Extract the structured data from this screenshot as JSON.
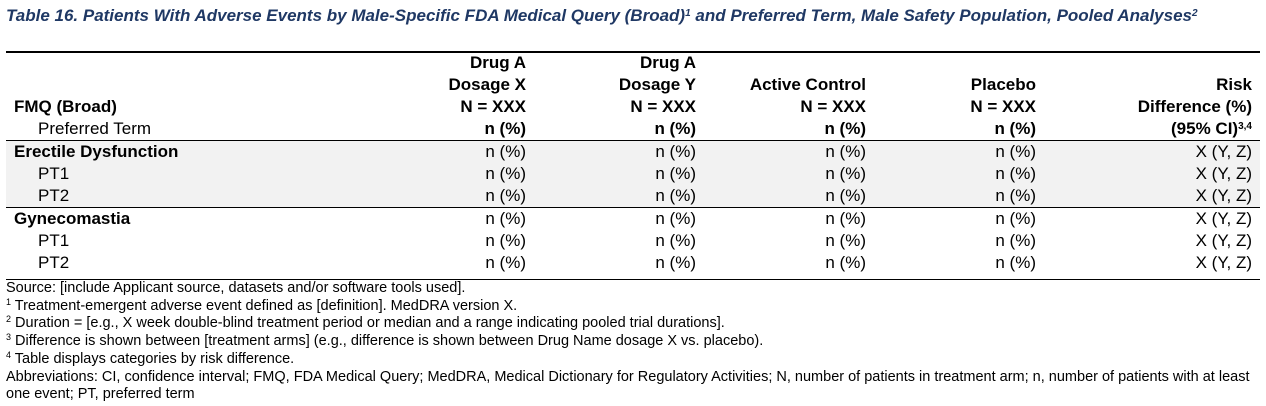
{
  "title": {
    "text": "Table 16. Patients With Adverse Events by Male-Specific FDA Medical Query (Broad)",
    "sup": "1",
    "text2": " and Preferred Term, Male Safety Population, Pooled Analyses",
    "sup2": "2"
  },
  "header": {
    "fmq_label": "FMQ (Broad)",
    "pt_label": "Preferred Term",
    "col1": [
      "Drug A",
      "Dosage X",
      "N = XXX",
      "n (%)"
    ],
    "col2": [
      "Drug A",
      "Dosage Y",
      "N = XXX",
      "n (%)"
    ],
    "col3": [
      "Active Control",
      "N = XXX",
      "n (%)"
    ],
    "col4": [
      "Placebo",
      "N = XXX",
      "n (%)"
    ],
    "col5": [
      "Risk",
      "Difference (%)",
      "(95% CI)",
      "3,4"
    ]
  },
  "rows": [
    {
      "label": "Erectile Dysfunction",
      "c1": "n (%)",
      "c2": "n (%)",
      "c3": "n (%)",
      "c4": "n (%)",
      "c5": "X (Y, Z)"
    },
    {
      "label": "PT1",
      "c1": "n (%)",
      "c2": "n (%)",
      "c3": "n (%)",
      "c4": "n (%)",
      "c5": "X (Y, Z)"
    },
    {
      "label": "PT2",
      "c1": "n (%)",
      "c2": "n (%)",
      "c3": "n (%)",
      "c4": "n (%)",
      "c5": "X (Y, Z)"
    },
    {
      "label": "Gynecomastia",
      "c1": "n (%)",
      "c2": "n (%)",
      "c3": "n (%)",
      "c4": "n (%)",
      "c5": "X (Y, Z)"
    },
    {
      "label": "PT1",
      "c1": "n (%)",
      "c2": "n (%)",
      "c3": "n (%)",
      "c4": "n (%)",
      "c5": "X (Y, Z)"
    },
    {
      "label": "PT2",
      "c1": "n (%)",
      "c2": "n (%)",
      "c3": "n (%)",
      "c4": "n (%)",
      "c5": "X (Y, Z)"
    }
  ],
  "footnotes": {
    "source": "Source: [include Applicant source, datasets and/or software tools used].",
    "f1_mark": "1",
    "f1": " Treatment-emergent adverse event defined as [definition]. MedDRA version X.",
    "f2_mark": "2",
    "f2": " Duration = [e.g., X week double-blind treatment period or median and a range indicating pooled trial durations].",
    "f3_mark": "3",
    "f3": " Difference is shown between [treatment arms] (e.g., difference is shown between Drug Name dosage X vs. placebo).",
    "f4_mark": "4",
    "f4": " Table displays categories by risk difference.",
    "abbrev": "Abbreviations: CI, confidence interval; FMQ, FDA Medical Query; MedDRA, Medical Dictionary for Regulatory Activities; N, number of patients in treatment arm; n, number of patients with at least one event; PT, preferred term"
  }
}
